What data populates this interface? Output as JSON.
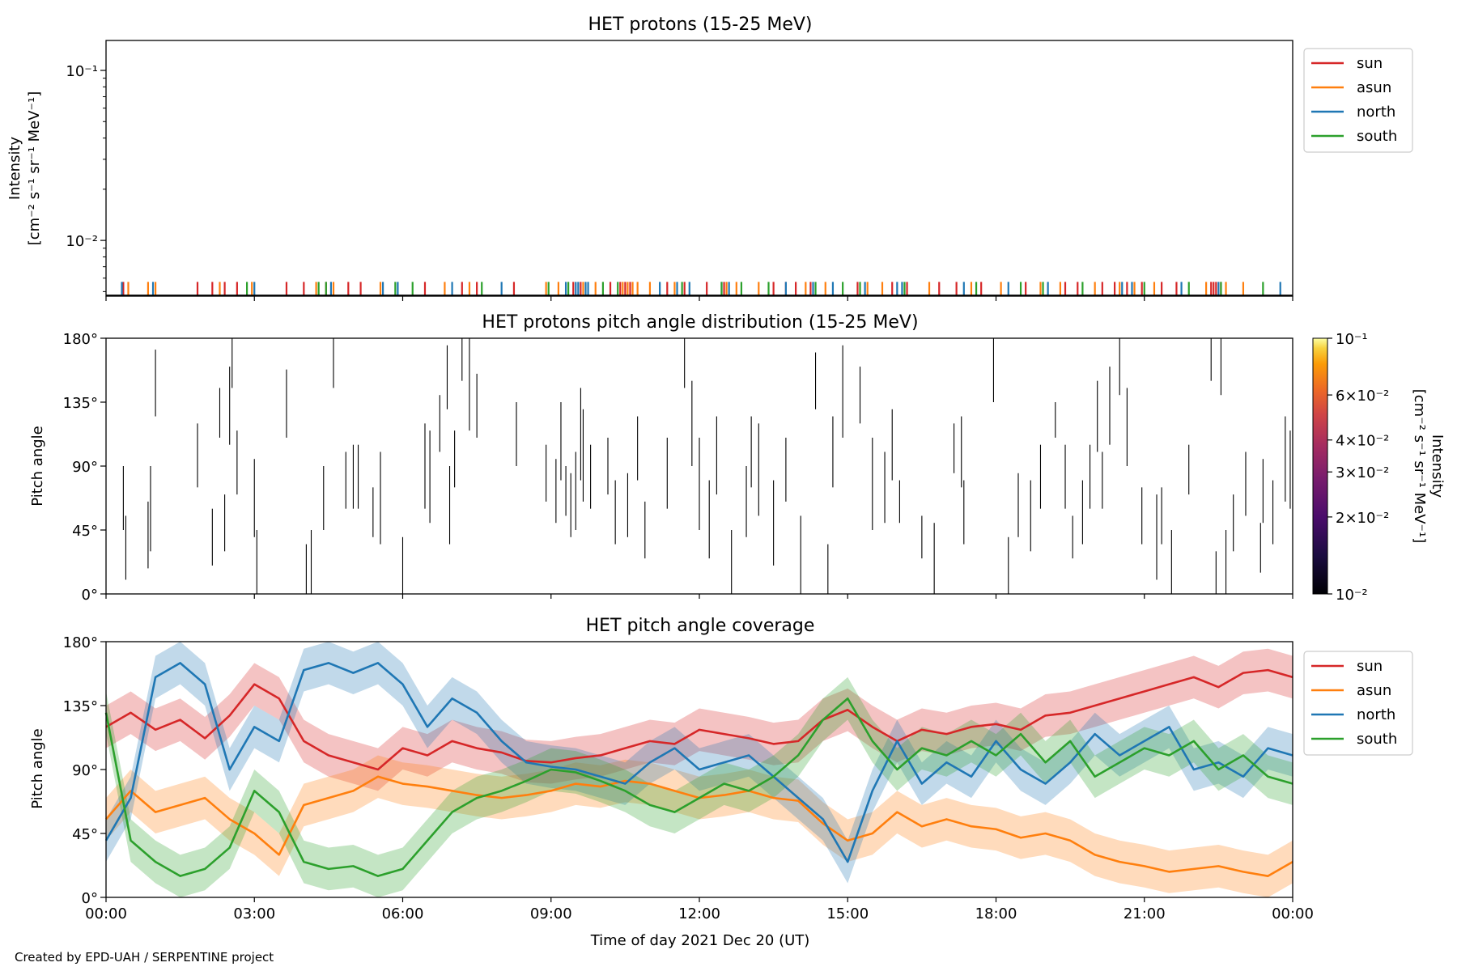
{
  "footer": "Created by EPD-UAH / SERPENTINE project",
  "colors": {
    "sun": "#d62728",
    "asun": "#ff7f0e",
    "north": "#1f77b4",
    "south": "#2ca02c"
  },
  "chart_data": [
    {
      "type": "line",
      "title": "HET protons (15-25 MeV)",
      "ylabel_line1": "Intensity",
      "ylabel_line2": "[cm⁻² s⁻¹ sr⁻¹ MeV⁻¹]",
      "yscale": "log",
      "ylim": [
        0.0047,
        0.15
      ],
      "yticks": [
        {
          "value": 0.01,
          "label": "10⁻²"
        },
        {
          "value": 0.1,
          "label": "10⁻¹"
        }
      ],
      "xlim_hours": [
        0,
        24
      ],
      "legend": [
        "sun",
        "asun",
        "north",
        "south"
      ],
      "legend_position": "outside-top-right",
      "spike_level": 0.0057,
      "spikes": {
        "sun": [
          0.35,
          1.85,
          2.15,
          2.4,
          2.65,
          3.65,
          4.0,
          4.45,
          4.9,
          5.15,
          6.45,
          7.2,
          7.5,
          8.25,
          9.45,
          9.6,
          10.2,
          10.4,
          10.5,
          10.6,
          11.35,
          11.7,
          12.15,
          12.5,
          13.5,
          13.75,
          13.95,
          14.25,
          15.2,
          15.9,
          16.2,
          16.85,
          17.2,
          17.7,
          18.6,
          19.4,
          19.65,
          20.15,
          20.4,
          20.65,
          20.95,
          21.35,
          21.65,
          22.35,
          22.4,
          22.45,
          22.55
        ],
        "asun": [
          0.45,
          0.85,
          1.0,
          2.3,
          2.95,
          4.25,
          4.6,
          5.55,
          6.85,
          7.35,
          8.9,
          9.15,
          9.65,
          9.9,
          10.45,
          10.55,
          10.65,
          10.75,
          11.0,
          11.5,
          12.55,
          12.75,
          13.2,
          14.15,
          14.55,
          15.4,
          15.7,
          16.65,
          17.5,
          18.1,
          18.9,
          19.3,
          20.0,
          20.5,
          20.8,
          21.2,
          22.25,
          22.65,
          23.0
        ],
        "north": [
          0.32,
          0.95,
          3.0,
          4.55,
          5.6,
          5.9,
          7.0,
          8.0,
          9.3,
          9.5,
          9.55,
          9.7,
          9.75,
          11.2,
          11.55,
          11.8,
          12.45,
          12.6,
          13.75,
          14.3,
          14.7,
          15.35,
          16.0,
          16.1,
          17.35,
          18.25,
          19.05,
          20.55,
          20.75,
          21.75,
          22.5,
          23.75
        ],
        "south": [
          2.85,
          4.3,
          4.45,
          5.85,
          6.2,
          7.6,
          8.95,
          9.35,
          10.05,
          10.35,
          11.65,
          12.45,
          12.85,
          13.4,
          14.35,
          14.9,
          15.25,
          16.15,
          17.6,
          18.5,
          18.95,
          19.75,
          21.0,
          21.9,
          22.55,
          23.4
        ]
      }
    },
    {
      "type": "heatmap",
      "title": "HET protons pitch angle distribution (15-25 MeV)",
      "ylabel": "Pitch angle",
      "ylim": [
        0,
        180
      ],
      "yticks": [
        "0°",
        "45°",
        "90°",
        "135°",
        "180°"
      ],
      "xlim_hours": [
        0,
        24
      ],
      "colorbar": {
        "label_line1": "Intensity",
        "label_line2": "[cm⁻² s⁻¹ sr⁻¹ MeV⁻¹]",
        "scale": "log",
        "range": [
          0.01,
          0.1
        ],
        "ticks": [
          {
            "value": 0.1,
            "label": "10⁻¹"
          },
          {
            "value": 0.06,
            "label": "6×10⁻²"
          },
          {
            "value": 0.04,
            "label": "4×10⁻²"
          },
          {
            "value": 0.03,
            "label": "3×10⁻²"
          },
          {
            "value": 0.02,
            "label": "2×10⁻²"
          },
          {
            "value": 0.01,
            "label": "10⁻²"
          }
        ],
        "colormap": "inferno"
      },
      "segments": [
        [
          0.35,
          45,
          90
        ],
        [
          0.4,
          10,
          55
        ],
        [
          0.85,
          18,
          65
        ],
        [
          0.9,
          30,
          90
        ],
        [
          1.0,
          125,
          172
        ],
        [
          1.85,
          75,
          120
        ],
        [
          2.15,
          20,
          60
        ],
        [
          2.3,
          110,
          145
        ],
        [
          2.4,
          30,
          70
        ],
        [
          2.5,
          105,
          160
        ],
        [
          2.55,
          145,
          180
        ],
        [
          2.65,
          70,
          115
        ],
        [
          3.0,
          40,
          95
        ],
        [
          3.05,
          0,
          45
        ],
        [
          3.65,
          110,
          158
        ],
        [
          4.05,
          0,
          35
        ],
        [
          4.15,
          0,
          45
        ],
        [
          4.4,
          45,
          90
        ],
        [
          4.6,
          145,
          180
        ],
        [
          4.85,
          60,
          100
        ],
        [
          5.0,
          60,
          105
        ],
        [
          5.1,
          60,
          105
        ],
        [
          5.4,
          40,
          75
        ],
        [
          5.55,
          35,
          100
        ],
        [
          6.0,
          0,
          40
        ],
        [
          6.45,
          60,
          120
        ],
        [
          6.55,
          50,
          115
        ],
        [
          6.75,
          100,
          140
        ],
        [
          6.9,
          130,
          175
        ],
        [
          6.95,
          35,
          90
        ],
        [
          7.05,
          75,
          115
        ],
        [
          7.2,
          150,
          180
        ],
        [
          7.35,
          115,
          180
        ],
        [
          7.5,
          110,
          155
        ],
        [
          8.3,
          90,
          135
        ],
        [
          8.9,
          65,
          105
        ],
        [
          9.1,
          50,
          95
        ],
        [
          9.2,
          80,
          135
        ],
        [
          9.3,
          55,
          90
        ],
        [
          9.4,
          40,
          85
        ],
        [
          9.5,
          45,
          100
        ],
        [
          9.6,
          80,
          145
        ],
        [
          9.65,
          65,
          130
        ],
        [
          9.8,
          60,
          105
        ],
        [
          10.15,
          70,
          110
        ],
        [
          10.3,
          35,
          80
        ],
        [
          10.55,
          40,
          85
        ],
        [
          10.75,
          80,
          125
        ],
        [
          10.9,
          25,
          65
        ],
        [
          11.35,
          60,
          110
        ],
        [
          11.7,
          145,
          180
        ],
        [
          11.85,
          90,
          150
        ],
        [
          12.0,
          45,
          110
        ],
        [
          12.2,
          25,
          80
        ],
        [
          12.35,
          70,
          125
        ],
        [
          12.65,
          0,
          45
        ],
        [
          12.95,
          40,
          90
        ],
        [
          13.05,
          75,
          125
        ],
        [
          13.2,
          55,
          120
        ],
        [
          13.5,
          20,
          80
        ],
        [
          13.75,
          65,
          110
        ],
        [
          14.05,
          0,
          55
        ],
        [
          14.35,
          130,
          170
        ],
        [
          14.6,
          0,
          35
        ],
        [
          14.7,
          75,
          125
        ],
        [
          14.9,
          110,
          175
        ],
        [
          15.25,
          120,
          160
        ],
        [
          15.5,
          45,
          110
        ],
        [
          15.75,
          50,
          100
        ],
        [
          15.9,
          80,
          130
        ],
        [
          16.05,
          50,
          80
        ],
        [
          16.5,
          25,
          55
        ],
        [
          16.75,
          0,
          50
        ],
        [
          17.15,
          85,
          120
        ],
        [
          17.3,
          75,
          125
        ],
        [
          17.35,
          35,
          80
        ],
        [
          17.95,
          135,
          180
        ],
        [
          18.25,
          0,
          40
        ],
        [
          18.45,
          40,
          85
        ],
        [
          18.7,
          30,
          80
        ],
        [
          18.9,
          60,
          105
        ],
        [
          19.2,
          110,
          135
        ],
        [
          19.4,
          60,
          105
        ],
        [
          19.55,
          25,
          55
        ],
        [
          19.75,
          35,
          80
        ],
        [
          19.9,
          60,
          105
        ],
        [
          20.05,
          100,
          150
        ],
        [
          20.15,
          60,
          100
        ],
        [
          20.3,
          105,
          160
        ],
        [
          20.5,
          140,
          180
        ],
        [
          20.65,
          90,
          145
        ],
        [
          20.95,
          35,
          75
        ],
        [
          21.25,
          10,
          70
        ],
        [
          21.35,
          35,
          75
        ],
        [
          21.55,
          0,
          45
        ],
        [
          21.9,
          70,
          105
        ],
        [
          22.35,
          150,
          180
        ],
        [
          22.45,
          0,
          30
        ],
        [
          22.55,
          140,
          180
        ],
        [
          22.65,
          0,
          45
        ],
        [
          22.8,
          30,
          70
        ],
        [
          23.05,
          55,
          100
        ],
        [
          23.35,
          15,
          50
        ],
        [
          23.4,
          50,
          95
        ],
        [
          23.6,
          35,
          80
        ],
        [
          23.85,
          65,
          125
        ],
        [
          23.95,
          60,
          115
        ]
      ]
    },
    {
      "type": "line",
      "title": "HET pitch angle coverage",
      "ylabel": "Pitch angle",
      "ylim": [
        0,
        180
      ],
      "yticks": [
        "0°",
        "45°",
        "90°",
        "135°",
        "180°"
      ],
      "xlabel": "Time of day 2021 Dec 20 (UT)",
      "xlim_hours": [
        0,
        24
      ],
      "xticks": [
        "00:00",
        "03:00",
        "06:00",
        "09:00",
        "12:00",
        "15:00",
        "18:00",
        "21:00",
        "00:00"
      ],
      "legend": [
        "sun",
        "asun",
        "north",
        "south"
      ],
      "legend_position": "outside-top-right",
      "band_halfwidth_deg": 15,
      "series": [
        {
          "name": "sun",
          "x": [
            0,
            0.5,
            1,
            1.5,
            2,
            2.5,
            3,
            3.5,
            4,
            4.5,
            5,
            5.5,
            6,
            6.5,
            7,
            7.5,
            8,
            8.5,
            9,
            9.5,
            10,
            10.5,
            11,
            11.5,
            12,
            12.5,
            13,
            13.5,
            14,
            14.5,
            15,
            15.5,
            16,
            16.5,
            17,
            17.5,
            18,
            18.5,
            19,
            19.5,
            20,
            20.5,
            21,
            21.5,
            22,
            22.5,
            23,
            23.5,
            24
          ],
          "y": [
            120,
            130,
            118,
            125,
            112,
            128,
            150,
            140,
            110,
            100,
            95,
            90,
            105,
            100,
            110,
            105,
            102,
            96,
            95,
            98,
            100,
            105,
            110,
            108,
            118,
            115,
            112,
            108,
            110,
            125,
            132,
            120,
            110,
            118,
            115,
            120,
            122,
            118,
            128,
            130,
            135,
            140,
            145,
            150,
            155,
            148,
            158,
            160,
            155
          ]
        },
        {
          "name": "asun",
          "x": [
            0,
            0.5,
            1,
            1.5,
            2,
            2.5,
            3,
            3.5,
            4,
            4.5,
            5,
            5.5,
            6,
            6.5,
            7,
            7.5,
            8,
            8.5,
            9,
            9.5,
            10,
            10.5,
            11,
            11.5,
            12,
            12.5,
            13,
            13.5,
            14,
            14.5,
            15,
            15.5,
            16,
            16.5,
            17,
            17.5,
            18,
            18.5,
            19,
            19.5,
            20,
            20.5,
            21,
            21.5,
            22,
            22.5,
            23,
            23.5,
            24
          ],
          "y": [
            55,
            75,
            60,
            65,
            70,
            55,
            45,
            30,
            65,
            70,
            75,
            85,
            80,
            78,
            75,
            72,
            70,
            72,
            75,
            80,
            78,
            82,
            80,
            75,
            70,
            72,
            75,
            70,
            68,
            52,
            40,
            45,
            60,
            50,
            55,
            50,
            48,
            42,
            45,
            40,
            30,
            25,
            22,
            18,
            20,
            22,
            18,
            15,
            25
          ]
        },
        {
          "name": "north",
          "x": [
            0,
            0.5,
            1,
            1.5,
            2,
            2.5,
            3,
            3.5,
            4,
            4.5,
            5,
            5.5,
            6,
            6.5,
            7,
            7.5,
            8,
            8.5,
            9,
            9.5,
            10,
            10.5,
            11,
            11.5,
            12,
            12.5,
            13,
            13.5,
            14,
            14.5,
            15,
            15.5,
            16,
            16.5,
            17,
            17.5,
            18,
            18.5,
            19,
            19.5,
            20,
            20.5,
            21,
            21.5,
            22,
            22.5,
            23,
            23.5,
            24
          ],
          "y": [
            40,
            70,
            155,
            165,
            150,
            90,
            120,
            110,
            160,
            165,
            158,
            165,
            150,
            120,
            140,
            130,
            110,
            95,
            92,
            90,
            85,
            80,
            95,
            105,
            90,
            95,
            100,
            85,
            70,
            55,
            25,
            75,
            110,
            80,
            95,
            85,
            110,
            90,
            80,
            95,
            115,
            100,
            110,
            120,
            90,
            95,
            85,
            105,
            100
          ]
        },
        {
          "name": "south",
          "x": [
            0,
            0.5,
            1,
            1.5,
            2,
            2.5,
            3,
            3.5,
            4,
            4.5,
            5,
            5.5,
            6,
            6.5,
            7,
            7.5,
            8,
            8.5,
            9,
            9.5,
            10,
            10.5,
            11,
            11.5,
            12,
            12.5,
            13,
            13.5,
            14,
            14.5,
            15,
            15.5,
            16,
            16.5,
            17,
            17.5,
            18,
            18.5,
            19,
            19.5,
            20,
            20.5,
            21,
            21.5,
            22,
            22.5,
            23,
            23.5,
            24
          ],
          "y": [
            130,
            40,
            25,
            15,
            20,
            35,
            75,
            60,
            25,
            20,
            22,
            15,
            20,
            40,
            60,
            70,
            75,
            82,
            90,
            88,
            82,
            75,
            65,
            60,
            70,
            80,
            75,
            85,
            100,
            125,
            140,
            110,
            90,
            105,
            100,
            110,
            100,
            115,
            95,
            110,
            85,
            95,
            105,
            100,
            110,
            90,
            100,
            85,
            80
          ]
        }
      ]
    }
  ]
}
